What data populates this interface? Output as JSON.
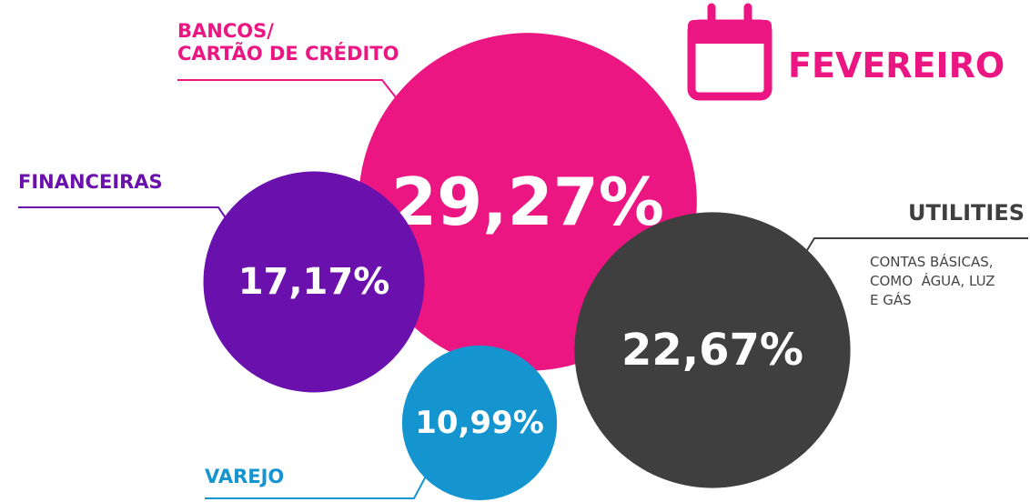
{
  "chart_data": {
    "type": "bubble",
    "title": "FEVEREIRO",
    "categories": [
      "BANCOS/\nCARTÃO DE CRÉDITO",
      "FINANCEIRAS",
      "UTILITIES",
      "VAREJO"
    ],
    "values": [
      29.27,
      17.17,
      22.67,
      10.99
    ],
    "value_labels": [
      "29,27%",
      "17,17%",
      "22,67%",
      "10,99%"
    ],
    "colors": [
      "#ec1683",
      "#6a11ad",
      "#3f3f3f",
      "#1495d0"
    ],
    "annotations": [
      "CONTAS BÁSICAS,\nCOMO  ÁGUA, LUZ\nE GÁS"
    ]
  }
}
